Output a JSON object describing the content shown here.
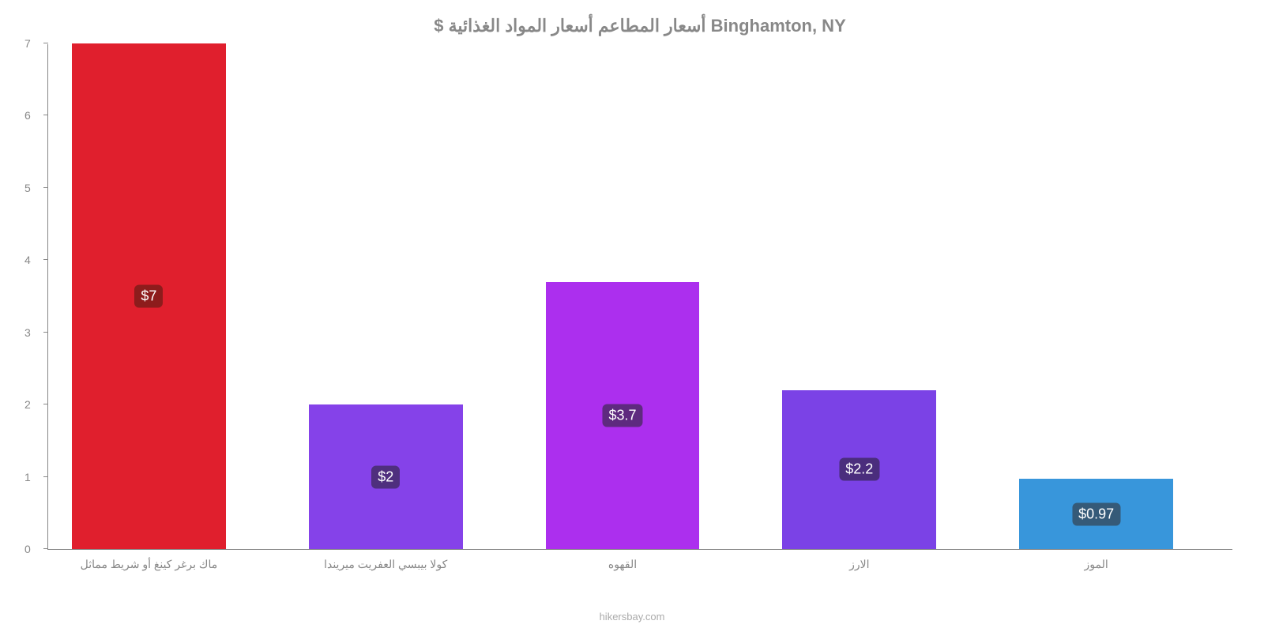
{
  "chart": {
    "type": "bar",
    "title": "Binghamton, NY أسعار المطاعم أسعار المواد الغذائية $",
    "attribution": "hikersbay.com",
    "background_color": "#ffffff",
    "y_axis": {
      "min": 0,
      "max": 7,
      "ticks": [
        0,
        1,
        2,
        3,
        4,
        5,
        6,
        7
      ],
      "tick_color": "#888888",
      "tick_fontsize": 14
    },
    "bar_width_pct": 13,
    "gap_pct": 7,
    "bar_start_pct": 2,
    "bars": [
      {
        "category": "ماك برغر كينغ أو شريط مماثل",
        "value": 7,
        "display_value": "$7",
        "color": "#e01f2d",
        "label_bg": "#8d1c1c"
      },
      {
        "category": "كولا بيبسي العفريت ميريندا",
        "value": 2,
        "display_value": "$2",
        "color": "#8542e9",
        "label_bg": "#4f2f7e"
      },
      {
        "category": "القهوه",
        "value": 3.7,
        "display_value": "$3.7",
        "color": "#ac2fee",
        "label_bg": "#5e2a7f"
      },
      {
        "category": "الارز",
        "value": 2.2,
        "display_value": "$2.2",
        "color": "#7b42e6",
        "label_bg": "#4a2d7d"
      },
      {
        "category": "الموز",
        "value": 0.97,
        "display_value": "$0.97",
        "color": "#3896db",
        "label_bg": "#355a78"
      }
    ]
  }
}
